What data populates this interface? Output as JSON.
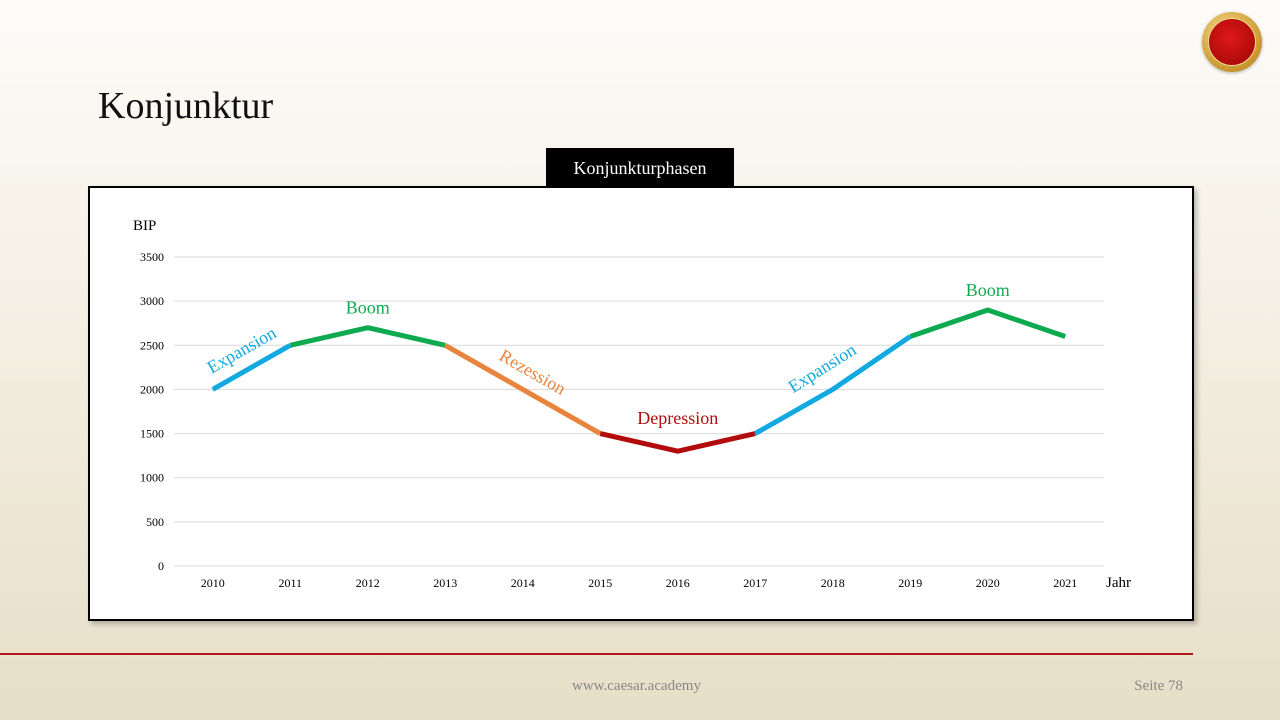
{
  "slide": {
    "title": "Konjunktur"
  },
  "footer": {
    "url": "www.caesar.academy",
    "page": "Seite 78"
  },
  "logo": {
    "icon": "laurel-seal-icon",
    "colors": {
      "ring": "#d4a93d",
      "center": "#c8100f"
    }
  },
  "chart_data": {
    "type": "line",
    "title": "Konjunkturphasen",
    "ylabel": "BIP",
    "xlabel": "Jahr",
    "ylim": [
      0,
      3500
    ],
    "yticks": [
      0,
      500,
      1000,
      1500,
      2000,
      2500,
      3000,
      3500
    ],
    "grid": true,
    "categories": [
      "2010",
      "2011",
      "2012",
      "2013",
      "2014",
      "2015",
      "2016",
      "2017",
      "2018",
      "2019",
      "2020",
      "2021"
    ],
    "values": [
      2000,
      2500,
      2700,
      2500,
      2000,
      1500,
      1300,
      1500,
      2000,
      2600,
      2900,
      2600
    ],
    "phases": [
      {
        "label": "Expansion",
        "from": "2010",
        "to": "2011",
        "color": "#12a9e1"
      },
      {
        "label": "Boom",
        "from": "2011",
        "to": "2013",
        "color": "#0eaa50"
      },
      {
        "label": "Rezession",
        "from": "2013",
        "to": "2015",
        "color": "#e8843c"
      },
      {
        "label": "Depression",
        "from": "2015",
        "to": "2017",
        "color": "#b30c0c"
      },
      {
        "label": "Expansion",
        "from": "2017",
        "to": "2019",
        "color": "#12a9e1"
      },
      {
        "label": "Boom",
        "from": "2019",
        "to": "2021",
        "color": "#0eaa50"
      }
    ]
  }
}
